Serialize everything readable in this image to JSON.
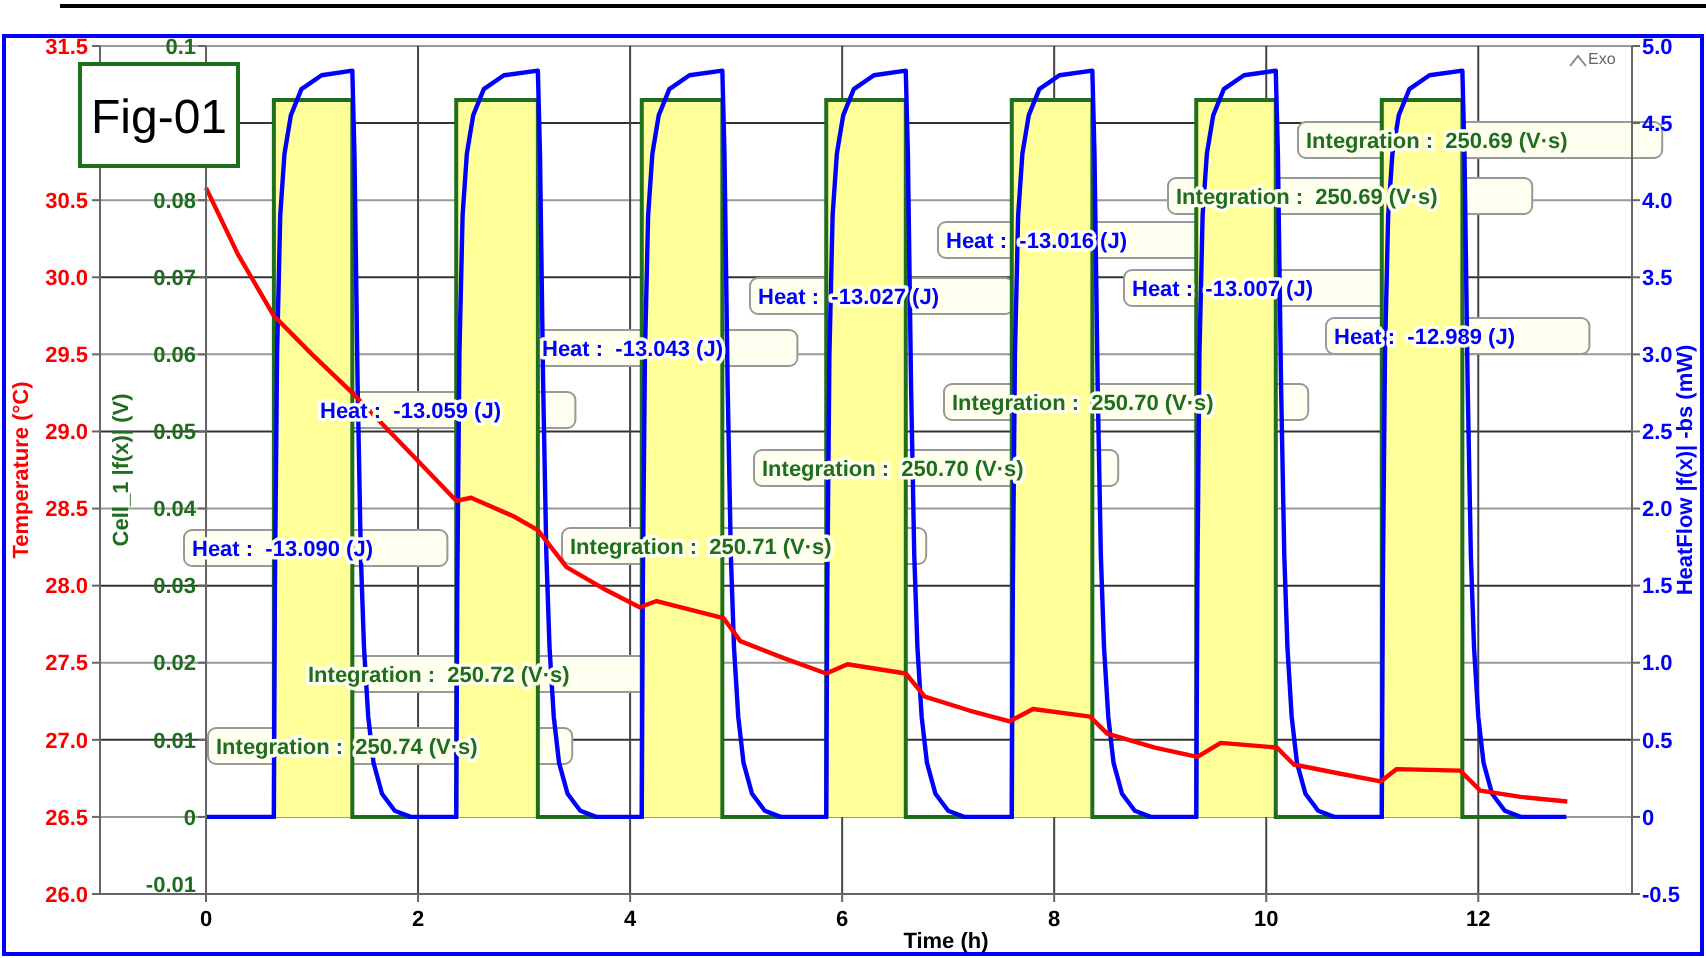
{
  "chart_data": {
    "type": "line",
    "title": "Fig-01",
    "xlabel": "Time (h)",
    "ylabel": "Temperature (°C)",
    "y2label": "HeatFlow |f(x)| -bs (mW)",
    "y3label": "Cell_1 |f(x)| (V)",
    "xlim": [
      -1,
      13.45
    ],
    "xticks": [
      0,
      2,
      4,
      6,
      8,
      10,
      12
    ],
    "ylim": [
      26,
      31.5
    ],
    "yticks": [
      {
        "value": 26,
        "label": "26.0"
      },
      26.5,
      {
        "value": 27,
        "label": "27.0"
      },
      27.5,
      {
        "value": 28,
        "label": "28.0"
      },
      28.5,
      {
        "value": 29,
        "label": "29.0"
      },
      29.5,
      {
        "value": 30,
        "label": "30.0"
      },
      30.5,
      {
        "value": 31,
        "label": null
      },
      31.5
    ],
    "y2lim": [
      -0.5,
      5
    ],
    "y2ticks": [
      -0.5,
      0,
      0.5,
      {
        "value": 1,
        "label": "1.0"
      },
      1.5,
      {
        "value": 2,
        "label": "2.0"
      },
      2.5,
      {
        "value": 3,
        "label": "3.0"
      },
      3.5,
      {
        "value": 4,
        "label": "4.0"
      },
      4.5,
      {
        "value": 5,
        "label": "5.0"
      }
    ],
    "y3lim": [
      -0.01,
      0.1
    ],
    "y3ticks": [
      -0.01,
      0,
      0.01,
      0.02,
      0.03,
      0.04,
      0.05,
      0.06,
      0.07,
      0.08,
      0.1
    ],
    "grid": true,
    "series": [
      {
        "type": "area",
        "axis": "y3",
        "color": "#ffff99",
        "x": [
          0,
          0.64,
          0.64,
          1.38,
          1.38,
          2.36,
          2.36,
          3.13,
          3.13,
          4.11,
          4.11,
          4.87,
          4.87,
          5.85,
          5.85,
          6.6,
          6.6,
          7.6,
          7.6,
          8.36,
          8.36,
          9.34,
          9.34,
          10.09,
          10.09,
          11.09,
          11.09,
          11.85,
          11.85,
          12.83
        ],
        "values": [
          0,
          0,
          0.093,
          0.093,
          0,
          0,
          0.093,
          0.093,
          0,
          0,
          0.093,
          0.093,
          0,
          0,
          0.093,
          0.093,
          0,
          0,
          0.093,
          0.093,
          0,
          0,
          0.093,
          0.093,
          0,
          0,
          0.093,
          0.093,
          0,
          0
        ]
      },
      {
        "type": "line",
        "axis": "y2",
        "color": "#0000ff",
        "x": [
          0,
          0.64,
          0.65,
          0.67,
          0.7,
          0.74,
          0.8,
          0.9,
          1.09,
          1.38,
          1.4,
          1.43,
          1.46,
          1.49,
          1.53,
          1.58,
          1.66,
          1.78,
          1.93,
          2.36,
          2.37,
          2.39,
          2.42,
          2.46,
          2.52,
          2.62,
          2.81,
          3.13,
          3.15,
          3.18,
          3.21,
          3.24,
          3.28,
          3.33,
          3.41,
          3.53,
          3.68,
          4.11,
          4.12,
          4.14,
          4.17,
          4.21,
          4.27,
          4.37,
          4.56,
          4.87,
          4.89,
          4.92,
          4.95,
          4.98,
          5.02,
          5.07,
          5.15,
          5.27,
          5.42,
          5.85,
          5.86,
          5.88,
          5.91,
          5.95,
          6.01,
          6.11,
          6.3,
          6.6,
          6.62,
          6.65,
          6.68,
          6.71,
          6.75,
          6.8,
          6.88,
          7.0,
          7.15,
          7.6,
          7.61,
          7.63,
          7.66,
          7.7,
          7.76,
          7.86,
          8.05,
          8.36,
          8.38,
          8.41,
          8.44,
          8.47,
          8.51,
          8.56,
          8.64,
          8.76,
          8.91,
          9.34,
          9.35,
          9.37,
          9.4,
          9.44,
          9.5,
          9.6,
          9.79,
          10.09,
          10.11,
          10.14,
          10.17,
          10.2,
          10.24,
          10.29,
          10.37,
          10.49,
          10.64,
          11.09,
          11.1,
          11.12,
          11.15,
          11.19,
          11.25,
          11.35,
          11.54,
          11.85,
          11.87,
          11.9,
          11.93,
          11.96,
          12.0,
          12.05,
          12.13,
          12.25,
          12.4,
          12.83
        ],
        "values": [
          0,
          0,
          1.5,
          3.0,
          3.9,
          4.3,
          4.55,
          4.72,
          4.81,
          4.84,
          4.3,
          2.8,
          1.7,
          1.1,
          0.65,
          0.35,
          0.15,
          0.04,
          0,
          0,
          1.5,
          3.0,
          3.9,
          4.3,
          4.55,
          4.72,
          4.81,
          4.84,
          4.3,
          2.8,
          1.7,
          1.1,
          0.65,
          0.35,
          0.15,
          0.04,
          0,
          0,
          1.5,
          3.0,
          3.9,
          4.3,
          4.55,
          4.72,
          4.81,
          4.84,
          4.3,
          2.8,
          1.7,
          1.1,
          0.65,
          0.35,
          0.15,
          0.04,
          0,
          0,
          1.5,
          3.0,
          3.9,
          4.3,
          4.55,
          4.72,
          4.81,
          4.84,
          4.3,
          2.8,
          1.7,
          1.1,
          0.65,
          0.35,
          0.15,
          0.04,
          0,
          0,
          1.5,
          3.0,
          3.9,
          4.3,
          4.55,
          4.72,
          4.81,
          4.84,
          4.3,
          2.8,
          1.7,
          1.1,
          0.65,
          0.35,
          0.15,
          0.04,
          0,
          0,
          1.5,
          3.0,
          3.9,
          4.3,
          4.55,
          4.72,
          4.81,
          4.84,
          4.3,
          2.8,
          1.7,
          1.1,
          0.65,
          0.35,
          0.15,
          0.04,
          0,
          0,
          1.5,
          3.0,
          3.9,
          4.3,
          4.55,
          4.72,
          4.81,
          4.84,
          4.3,
          2.8,
          1.7,
          1.1,
          0.65,
          0.35,
          0.15,
          0.04,
          0,
          0
        ]
      },
      {
        "axis": "y",
        "color": "#ff0000",
        "x": [
          0,
          0.3,
          0.64,
          1.0,
          1.38,
          1.9,
          2.36,
          2.5,
          2.9,
          3.13,
          3.4,
          3.75,
          4.09,
          4.25,
          4.88,
          5.04,
          5.45,
          5.85,
          6.05,
          6.6,
          6.78,
          7.2,
          7.58,
          7.8,
          8.34,
          8.5,
          8.95,
          9.35,
          9.57,
          10.1,
          10.26,
          10.7,
          11.08,
          11.23,
          11.83,
          12.02,
          12.4,
          12.84
        ],
        "values": [
          30.58,
          30.15,
          29.75,
          29.5,
          29.25,
          28.88,
          28.55,
          28.57,
          28.45,
          28.36,
          28.12,
          27.98,
          27.86,
          27.9,
          27.79,
          27.64,
          27.53,
          27.43,
          27.49,
          27.43,
          27.28,
          27.19,
          27.12,
          27.2,
          27.15,
          27.04,
          26.95,
          26.89,
          26.98,
          26.95,
          26.84,
          26.78,
          26.73,
          26.81,
          26.8,
          26.67,
          26.63,
          26.6
        ]
      }
    ],
    "annotations": [
      "Heat :  -13.090 (J)",
      "Heat :  -13.059 (J)",
      "Heat :  -13.043 (J)",
      "Heat :  -13.027 (J)",
      "Heat :  -13.016 (J)",
      "Heat :  -13.007 (J)",
      "Heat :  -12.989 (J)",
      "Integration :  250.74 (V·s)",
      "Integration :  250.72 (V·s)",
      "Integration :  250.71 (V·s)",
      "Integration :  250.70 (V·s)",
      "Integration :  250.70 (V·s)",
      "Integration :  250.69 (V·s)",
      "Integration :  250.69 (V·s)",
      "Exo"
    ]
  }
}
